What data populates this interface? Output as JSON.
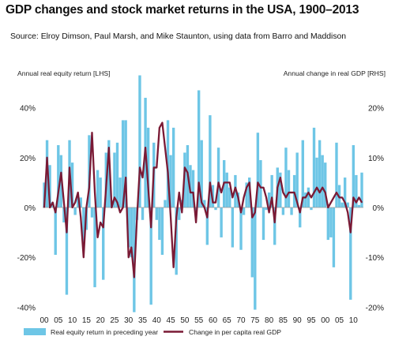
{
  "title": "GDP changes and stock market returns in the USA, 1900–2013",
  "subtitle": "Source: Elroy Dimson, Paul Marsh, and Mike Staunton, using data from Barro and Maddison",
  "colors": {
    "equity": "#6ec6e6",
    "gdp": "#7a1a35",
    "zero": "#999999"
  },
  "chart_data": {
    "type": "bar+line",
    "title": "GDP changes and stock market returns in the USA, 1900–2013",
    "left_axis_label": "Annual real equity return [LHS]",
    "right_axis_label": "Annual change in real GDP [RHS]",
    "left_ylim": [
      -40,
      50
    ],
    "right_ylim": [
      -20,
      25
    ],
    "left_ticks": [
      "-40%",
      "-20%",
      "0%",
      "20%",
      "40%"
    ],
    "left_tick_values": [
      -40,
      -20,
      0,
      20,
      40
    ],
    "right_ticks": [
      "-20%",
      "-10%",
      "0%",
      "10%",
      "20%"
    ],
    "right_tick_values": [
      -20,
      -10,
      0,
      10,
      20
    ],
    "x_tick_labels": [
      "00",
      "05",
      "10",
      "15",
      "20",
      "25",
      "30",
      "35",
      "40",
      "45",
      "50",
      "55",
      "60",
      "65",
      "70",
      "75",
      "80",
      "85",
      "90",
      "95",
      "00",
      "05",
      "10"
    ],
    "x_start_year": 1900,
    "legend": [
      "Real equity return in preceding year",
      "Change in per capita real GDP"
    ],
    "years": [
      1900,
      1901,
      1902,
      1903,
      1904,
      1905,
      1906,
      1907,
      1908,
      1909,
      1910,
      1911,
      1912,
      1913,
      1914,
      1915,
      1916,
      1917,
      1918,
      1919,
      1920,
      1921,
      1922,
      1923,
      1924,
      1925,
      1926,
      1927,
      1928,
      1929,
      1930,
      1931,
      1932,
      1933,
      1934,
      1935,
      1936,
      1937,
      1938,
      1939,
      1940,
      1941,
      1942,
      1943,
      1944,
      1945,
      1946,
      1947,
      1948,
      1949,
      1950,
      1951,
      1952,
      1953,
      1954,
      1955,
      1956,
      1957,
      1958,
      1959,
      1960,
      1961,
      1962,
      1963,
      1964,
      1965,
      1966,
      1967,
      1968,
      1969,
      1970,
      1971,
      1972,
      1973,
      1974,
      1975,
      1976,
      1977,
      1978,
      1979,
      1980,
      1981,
      1982,
      1983,
      1984,
      1985,
      1986,
      1987,
      1988,
      1989,
      1990,
      1991,
      1992,
      1993,
      1994,
      1995,
      1996,
      1997,
      1998,
      1999,
      2000,
      2001,
      2002,
      2003,
      2004,
      2005,
      2006,
      2007,
      2008,
      2009,
      2010,
      2011,
      2012,
      2013
    ],
    "series": [
      {
        "name": "Real equity return in preceding year",
        "axis": "left",
        "values": [
          10,
          27,
          17,
          2,
          -19,
          25,
          21,
          -6,
          -35,
          27,
          18,
          -3,
          4,
          4,
          -15,
          -9,
          29,
          -4,
          -32,
          15,
          12,
          -29,
          22,
          27,
          3,
          22,
          26,
          12,
          35,
          35,
          -16,
          -20,
          -42,
          -5,
          53,
          -5,
          44,
          32,
          -39,
          26,
          -5,
          -13,
          -19,
          3,
          35,
          21,
          32,
          -27,
          -5,
          3,
          22,
          25,
          17,
          15,
          -3,
          47,
          27,
          3,
          -15,
          37,
          9,
          -1,
          24,
          -12,
          19,
          14,
          8,
          -16,
          13,
          6,
          -17,
          -3,
          10,
          12,
          -28,
          -41,
          30,
          19,
          -13,
          -1,
          6,
          13,
          -15,
          16,
          14,
          -3,
          24,
          15,
          -3,
          13,
          22,
          -8,
          27,
          6,
          8,
          -1,
          32,
          20,
          27,
          21,
          18,
          -13,
          -12,
          -24,
          26,
          9,
          2,
          12,
          2,
          -37,
          25,
          13,
          1,
          14
        ]
      },
      {
        "name": "Change in per capita real GDP",
        "axis": "right",
        "values": [
          0,
          10,
          0,
          1,
          -1,
          3,
          7,
          1,
          -5,
          8,
          0,
          1,
          3,
          -2,
          -10,
          0,
          4,
          15,
          3,
          -6,
          -3,
          -4,
          4,
          12,
          0,
          2,
          1,
          -1,
          0,
          6,
          -10,
          -8,
          -14,
          -2,
          8,
          6,
          12,
          4,
          -4,
          8,
          8,
          16,
          17,
          12,
          7,
          -2,
          -12,
          -2,
          3,
          -1,
          8,
          7,
          3,
          3,
          -3,
          5,
          1,
          0,
          -2,
          5,
          1,
          1,
          5,
          3,
          5,
          5,
          5,
          2,
          4,
          2,
          -1,
          2,
          4,
          5,
          -2,
          -1,
          5,
          4,
          4,
          2,
          -1,
          2,
          -3,
          4,
          6,
          3,
          2,
          3,
          3,
          3,
          1,
          -1,
          2,
          2,
          3,
          2,
          3,
          4,
          3,
          4,
          3,
          0,
          1,
          2,
          3,
          2,
          2,
          1,
          -1,
          -5,
          2,
          1,
          2,
          1
        ]
      }
    ]
  }
}
